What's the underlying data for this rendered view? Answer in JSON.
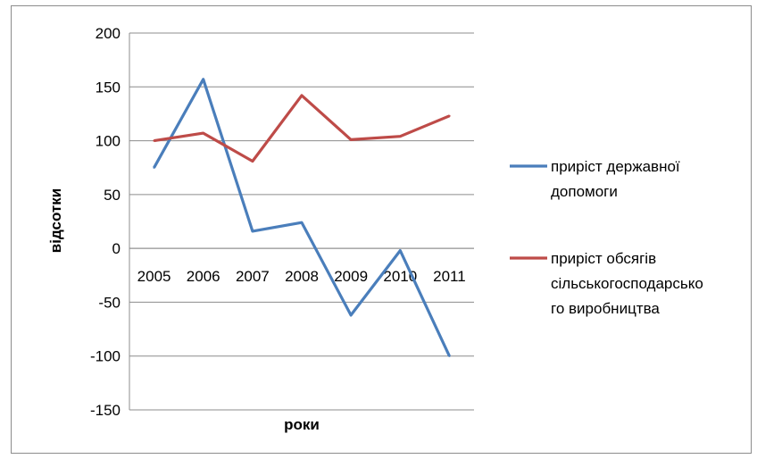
{
  "chart_data": {
    "type": "line",
    "title": "",
    "xlabel": "роки",
    "ylabel": "відсотки",
    "categories": [
      "2005",
      "2006",
      "2007",
      "2008",
      "2009",
      "2010",
      "2011"
    ],
    "ylim": [
      -150,
      200
    ],
    "yticks": [
      200,
      150,
      100,
      50,
      0,
      -50,
      -100,
      -150
    ],
    "ytick_labels": [
      "200",
      "150",
      "100",
      "50",
      "0",
      "-50",
      "-100",
      "-150"
    ],
    "grid": true,
    "legend_position": "right",
    "series": [
      {
        "name": "приріст державної допомоги",
        "name_lines": [
          "приріст державної",
          "допомоги"
        ],
        "color": "#4a7ebb",
        "values": [
          75,
          157,
          16,
          24,
          -62,
          -2,
          -100
        ]
      },
      {
        "name": "приріст обсягів сільськогосподарського виробництва",
        "name_lines": [
          "приріст обсягів",
          "сільськогосподарсько",
          "го виробництва"
        ],
        "color": "#be4b48",
        "values": [
          100,
          107,
          81,
          142,
          101,
          104,
          123
        ]
      }
    ]
  }
}
